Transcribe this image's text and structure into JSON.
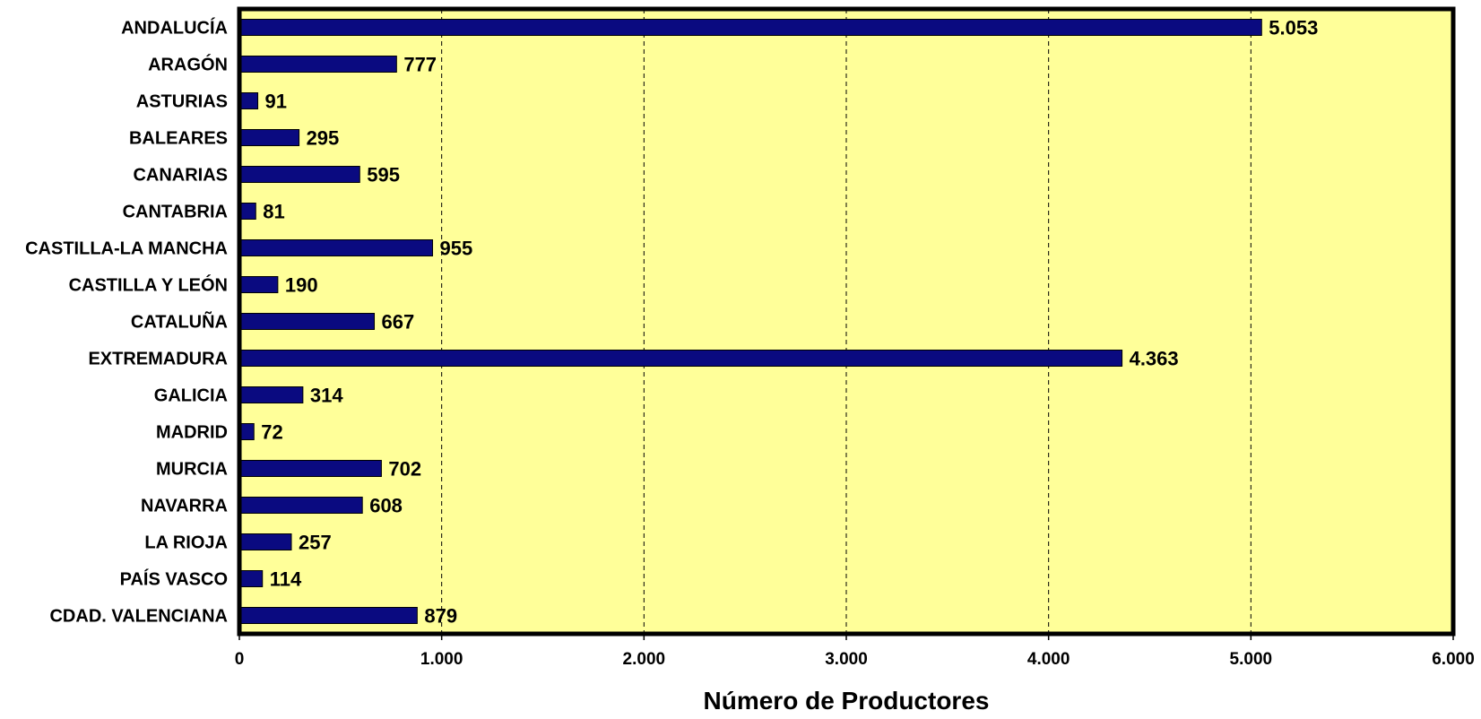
{
  "chart_data": {
    "type": "bar",
    "orientation": "horizontal",
    "categories": [
      "ANDALUCÍA",
      "ARAGÓN",
      "ASTURIAS",
      "BALEARES",
      "CANARIAS",
      "CANTABRIA",
      "CASTILLA-LA MANCHA",
      "CASTILLA Y LEÓN",
      "CATALUÑA",
      "EXTREMADURA",
      "GALICIA",
      "MADRID",
      "MURCIA",
      "NAVARRA",
      "LA RIOJA",
      "PAÍS VASCO",
      "CDAD. VALENCIANA"
    ],
    "values": [
      5053,
      777,
      91,
      295,
      595,
      81,
      955,
      190,
      667,
      4363,
      314,
      72,
      702,
      608,
      257,
      114,
      879
    ],
    "value_labels": [
      "5.053",
      "777",
      "91",
      "295",
      "595",
      "81",
      "955",
      "190",
      "667",
      "4.363",
      "314",
      "72",
      "702",
      "608",
      "257",
      "114",
      "879"
    ],
    "xlim": [
      0,
      6000
    ],
    "x_ticks": [
      0,
      1000,
      2000,
      3000,
      4000,
      5000,
      6000
    ],
    "x_tick_labels": [
      "0",
      "1.000",
      "2.000",
      "3.000",
      "4.000",
      "5.000",
      "6.000"
    ],
    "xlabel": "Número de Productores",
    "ylabel": "",
    "title": "",
    "grid": "vertical dashed",
    "legend": "none",
    "colors": {
      "bar": "#0a0a80",
      "plot_background": "#ffff99",
      "frame": "#000000",
      "grid": "#000000"
    }
  }
}
